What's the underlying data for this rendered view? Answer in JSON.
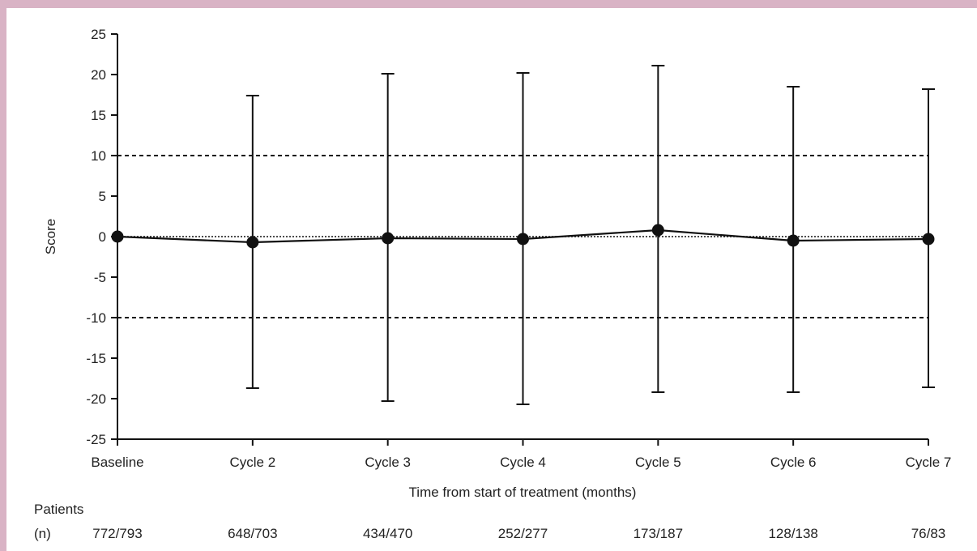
{
  "chart_data": {
    "type": "line",
    "categories": [
      "Baseline",
      "Cycle 2",
      "Cycle 3",
      "Cycle 4",
      "Cycle 5",
      "Cycle 6",
      "Cycle 7"
    ],
    "values": [
      0,
      -0.7,
      -0.2,
      -0.3,
      0.8,
      -0.5,
      -0.3
    ],
    "error_upper": [
      0,
      17.4,
      20.1,
      20.2,
      21.1,
      18.5,
      18.2
    ],
    "error_lower": [
      0,
      -18.7,
      -20.3,
      -20.7,
      -19.2,
      -19.2,
      -18.6
    ],
    "ylabel": "Score",
    "xlabel": "Time from start of treatment (months)",
    "ylim": [
      -25,
      25
    ],
    "yticks": [
      25,
      20,
      15,
      10,
      5,
      0,
      -5,
      -10,
      -15,
      -20,
      -25
    ],
    "reference_lines": [
      {
        "y": 10,
        "style": "dashed"
      },
      {
        "y": 0,
        "style": "dotted"
      },
      {
        "y": -10,
        "style": "dashed"
      }
    ],
    "grid": false
  },
  "patients": {
    "label_line1": "Patients",
    "label_line2": "(n)",
    "counts": [
      "772/793",
      "648/703",
      "434/470",
      "252/277",
      "173/187",
      "128/138",
      "76/83"
    ]
  }
}
